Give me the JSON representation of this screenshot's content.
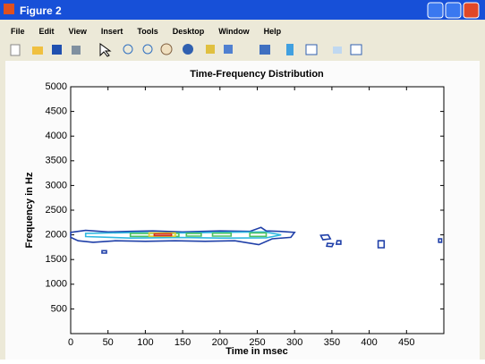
{
  "window": {
    "title": "Figure 2",
    "menu": [
      "File",
      "Edit",
      "View",
      "Insert",
      "Tools",
      "Desktop",
      "Window",
      "Help"
    ]
  },
  "chart_data": {
    "type": "contour",
    "title": "Time-Frequency Distribution",
    "x_label": "Time in msec",
    "y_label": "Frequency in Hz",
    "xlim": [
      0,
      500
    ],
    "xticks": [
      0,
      50,
      100,
      150,
      200,
      250,
      300,
      350,
      400,
      450
    ],
    "ylim": [
      0,
      5000
    ],
    "yticks": [
      500,
      1000,
      1500,
      2000,
      2500,
      3000,
      3500,
      4000,
      4500,
      5000
    ],
    "series": [
      {
        "color": "#1f3fa8",
        "x": [
          0,
          20,
          50,
          80,
          110,
          150,
          200,
          240,
          255,
          262,
          280,
          300,
          295,
          270,
          252,
          220,
          180,
          140,
          100,
          60,
          30,
          10,
          0
        ],
        "y": [
          2050,
          2090,
          2060,
          2070,
          2080,
          2060,
          2080,
          2070,
          2150,
          2080,
          2070,
          2050,
          1950,
          1920,
          1800,
          1880,
          1870,
          1880,
          1870,
          1880,
          1850,
          1880,
          1950
        ]
      },
      {
        "color": "#2fb8e0",
        "x": [
          20,
          80,
          150,
          200,
          260,
          282,
          262,
          200,
          150,
          80,
          20
        ],
        "y": [
          2030,
          2045,
          2040,
          2050,
          2060,
          2000,
          1940,
          1935,
          1945,
          1935,
          1965
        ]
      },
      {
        "color": "#4cc060",
        "x": [
          80,
          145,
          145,
          80
        ],
        "y": [
          2030,
          2030,
          1970,
          1970
        ]
      },
      {
        "color": "#4cc060",
        "x": [
          155,
          175,
          175,
          155
        ],
        "y": [
          2030,
          2030,
          1975,
          1975
        ]
      },
      {
        "color": "#4cc060",
        "x": [
          190,
          215,
          215,
          190
        ],
        "y": [
          2035,
          2035,
          1975,
          1975
        ]
      },
      {
        "color": "#4cc060",
        "x": [
          240,
          262,
          262,
          240
        ],
        "y": [
          2040,
          2040,
          1970,
          1970
        ]
      },
      {
        "color": "#e8d030",
        "x": [
          105,
          140,
          140,
          105
        ],
        "y": [
          2040,
          2040,
          1972,
          1972
        ]
      },
      {
        "color": "#d03020",
        "x": [
          112,
          135,
          135,
          112
        ],
        "y": [
          2020,
          2020,
          1985,
          1985
        ]
      },
      {
        "color": "#1f3fa8",
        "x": [
          335,
          345,
          348,
          338
        ],
        "y": [
          1990,
          2000,
          1920,
          1900
        ]
      },
      {
        "color": "#1f3fa8",
        "x": [
          344,
          352,
          350,
          343
        ],
        "y": [
          1830,
          1820,
          1760,
          1770
        ]
      },
      {
        "color": "#1f3fa8",
        "x": [
          357,
          362,
          362,
          356
        ],
        "y": [
          1880,
          1880,
          1810,
          1810
        ]
      },
      {
        "color": "#1f3fa8",
        "x": [
          412,
          420,
          420,
          412
        ],
        "y": [
          1880,
          1880,
          1740,
          1740
        ]
      },
      {
        "color": "#1f3fa8",
        "x": [
          493,
          497,
          497,
          493
        ],
        "y": [
          1920,
          1920,
          1850,
          1850
        ]
      },
      {
        "color": "#1f3fa8",
        "x": [
          42,
          48,
          48,
          42
        ],
        "y": [
          1680,
          1680,
          1630,
          1630
        ]
      }
    ]
  }
}
